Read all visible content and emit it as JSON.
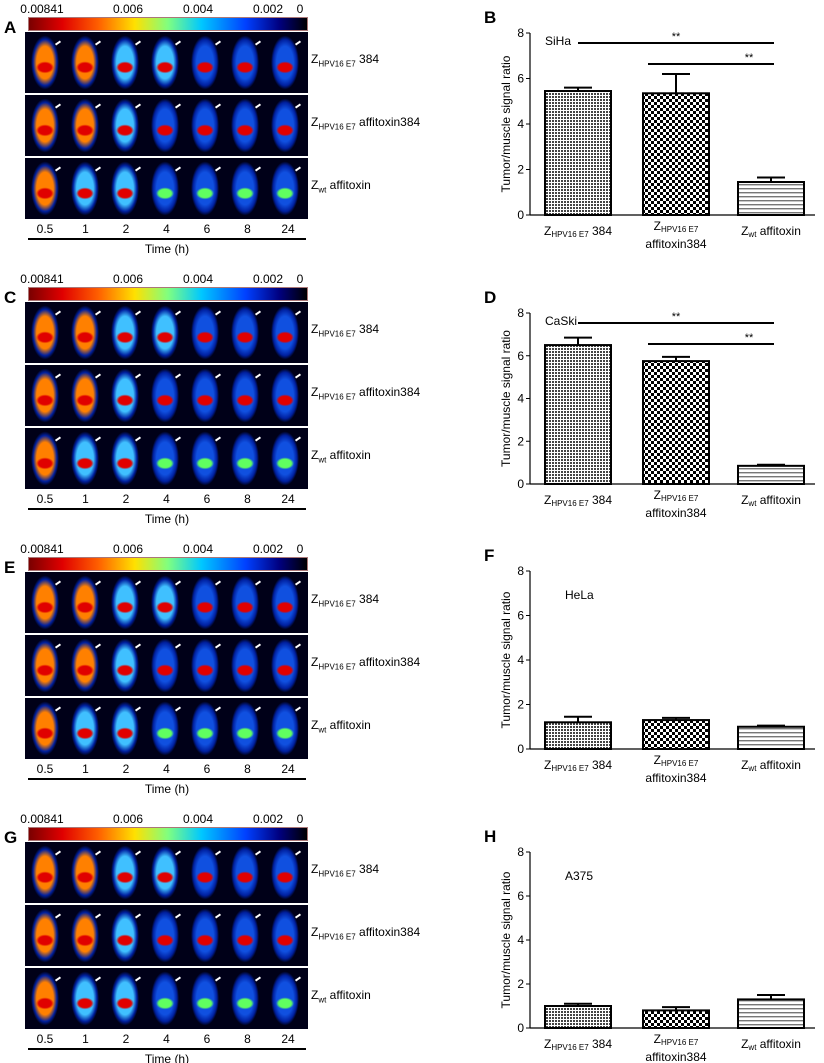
{
  "colorbar": {
    "ticks": [
      "0.00841",
      "0.006",
      "0.004",
      "0.002",
      "0"
    ],
    "colors": [
      "#7a0000",
      "#ff6000",
      "#ffe000",
      "#00c8ff",
      "#0040ff",
      "#000000"
    ]
  },
  "time_points": [
    "0.5",
    "1",
    "2",
    "4",
    "6",
    "8",
    "24"
  ],
  "time_title": "Time (h)",
  "row_labels": [
    {
      "main": "Z",
      "sub": "HPV16 E7",
      "rest": " 384"
    },
    {
      "main": "Z",
      "sub": "HPV16 E7",
      "rest": " affitoxin384"
    },
    {
      "main": "Z",
      "sub": "wt",
      "rest": " affitoxin"
    }
  ],
  "image_panels": [
    {
      "label": "A"
    },
    {
      "label": "C"
    },
    {
      "label": "E"
    },
    {
      "label": "G"
    }
  ],
  "chart_data": [
    {
      "panel": "B",
      "type": "bar",
      "title": "SiHa",
      "ylabel": "Tumor/muscle signal ratio",
      "ylim": [
        0,
        8
      ],
      "yticks": [
        "0",
        "2",
        "4",
        "6",
        "8"
      ],
      "categories": [
        {
          "main": "Z",
          "sub": "HPV16 E7",
          "rest": " 384"
        },
        {
          "main": "Z",
          "sub": "HPV16 E7",
          "rest": "",
          "line2": "affitoxin384"
        },
        {
          "main": "Z",
          "sub": "wt",
          "rest": " affitoxin"
        }
      ],
      "values": [
        5.45,
        5.35,
        1.45
      ],
      "errors": [
        0.15,
        0.85,
        0.2
      ],
      "significance": [
        {
          "from": 0,
          "to": 2,
          "label": "**"
        },
        {
          "from": 1,
          "to": 2,
          "label": "**"
        }
      ]
    },
    {
      "panel": "D",
      "type": "bar",
      "title": "CaSki",
      "ylabel": "Tumor/muscle signal ratio",
      "ylim": [
        0,
        8
      ],
      "yticks": [
        "0",
        "2",
        "4",
        "6",
        "8"
      ],
      "categories": [
        {
          "main": "Z",
          "sub": "HPV16 E7",
          "rest": " 384"
        },
        {
          "main": "Z",
          "sub": "HPV16 E7",
          "rest": "",
          "line2": "affitoxin384"
        },
        {
          "main": "Z",
          "sub": "wt",
          "rest": " affitoxin"
        }
      ],
      "values": [
        6.5,
        5.75,
        0.85
      ],
      "errors": [
        0.35,
        0.2,
        0.05
      ],
      "significance": [
        {
          "from": 0,
          "to": 2,
          "label": "**"
        },
        {
          "from": 1,
          "to": 2,
          "label": "**"
        }
      ]
    },
    {
      "panel": "F",
      "type": "bar",
      "title": "HeLa",
      "ylabel": "Tumor/muscle signal ratio",
      "ylim": [
        0,
        8
      ],
      "yticks": [
        "0",
        "2",
        "4",
        "6",
        "8"
      ],
      "categories": [
        {
          "main": "Z",
          "sub": "HPV16 E7",
          "rest": " 384"
        },
        {
          "main": "Z",
          "sub": "HPV16 E7",
          "rest": "",
          "line2": "affitoxin384"
        },
        {
          "main": "Z",
          "sub": "wt",
          "rest": " affitoxin"
        }
      ],
      "values": [
        1.2,
        1.3,
        1.0
      ],
      "errors": [
        0.25,
        0.1,
        0.05
      ],
      "significance": []
    },
    {
      "panel": "H",
      "type": "bar",
      "title": "A375",
      "ylabel": "Tumor/muscle signal ratio",
      "ylim": [
        0,
        8
      ],
      "yticks": [
        "0",
        "2",
        "4",
        "6",
        "8"
      ],
      "categories": [
        {
          "main": "Z",
          "sub": "HPV16 E7",
          "rest": " 384"
        },
        {
          "main": "Z",
          "sub": "HPV16 E7",
          "rest": "",
          "line2": "affitoxin384"
        },
        {
          "main": "Z",
          "sub": "wt",
          "rest": " affitoxin"
        }
      ],
      "values": [
        1.0,
        0.8,
        1.3
      ],
      "errors": [
        0.1,
        0.15,
        0.2
      ],
      "significance": []
    }
  ]
}
